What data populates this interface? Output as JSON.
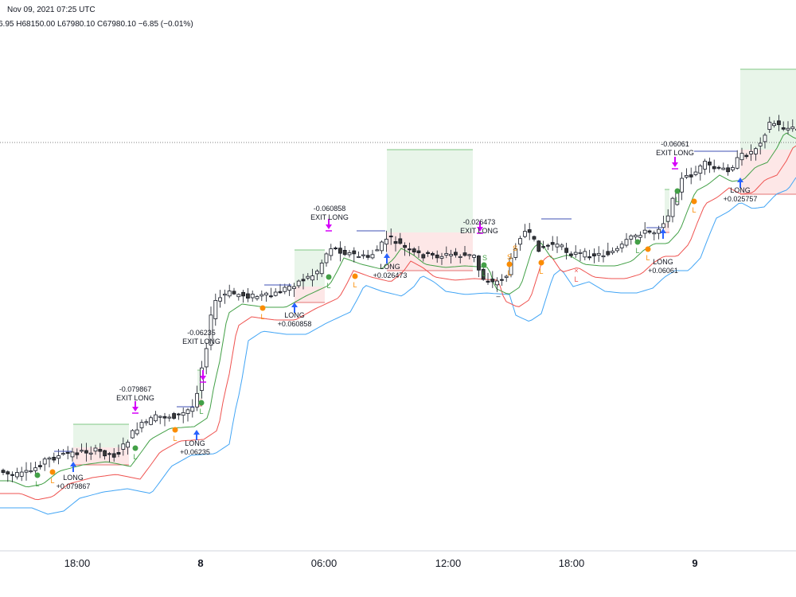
{
  "header": {
    "date_line": "Nov 09, 2021 07:25 UTC",
    "ohlc_line": "6.95   H68150.00   L67980.10   C67980.10   −6.85 (−0.01%)"
  },
  "colors": {
    "bull": "#ffffff",
    "bear": "#3a3a3a",
    "green_ma": "#43a047",
    "red_ma": "#ef5350",
    "blue_ma": "#42a5f5",
    "profit_fill": "#e8f5e9",
    "loss_fill": "#fde7e7",
    "long_arrow": "#2962ff",
    "exit_marker": "#d500f9",
    "green_dot": "#43a047",
    "orange_dot": "#fb8c00"
  },
  "chart_data": {
    "type": "candlestick",
    "title": "",
    "xlabel": "",
    "ylabel": "",
    "x_ticks": [
      "18:00",
      "8",
      "06:00",
      "12:00",
      "18:00",
      "9"
    ],
    "bold_ticks": [
      "8",
      "9"
    ],
    "series": [
      {
        "name": "",
        "values": []
      }
    ],
    "trades": [
      {
        "entry_label": "LONG",
        "entry_value": "+0.079867",
        "exit_label": "EXIT LONG",
        "exit_value": "-0.079867"
      },
      {
        "entry_label": "LONG",
        "entry_value": "+0.06235",
        "exit_label": "EXIT LONG",
        "exit_value": "-0.06235"
      },
      {
        "entry_label": "LONG",
        "entry_value": "+0.060858",
        "exit_label": "EXIT LONG",
        "exit_value": "-0.060858"
      },
      {
        "entry_label": "LONG",
        "entry_value": "+0.026473",
        "exit_label": "EXIT LONG",
        "exit_value": "-0.026473"
      },
      {
        "entry_label": "LONG",
        "entry_value": "+0.06061",
        "exit_label": "EXIT LONG",
        "exit_value": "-0.06061"
      },
      {
        "entry_label": "LONG",
        "entry_value": "+0.025757",
        "exit_label": "",
        "exit_value": ""
      }
    ],
    "markers": {
      "long_letter": "L",
      "short_letter": "S",
      "dash": "–"
    }
  }
}
